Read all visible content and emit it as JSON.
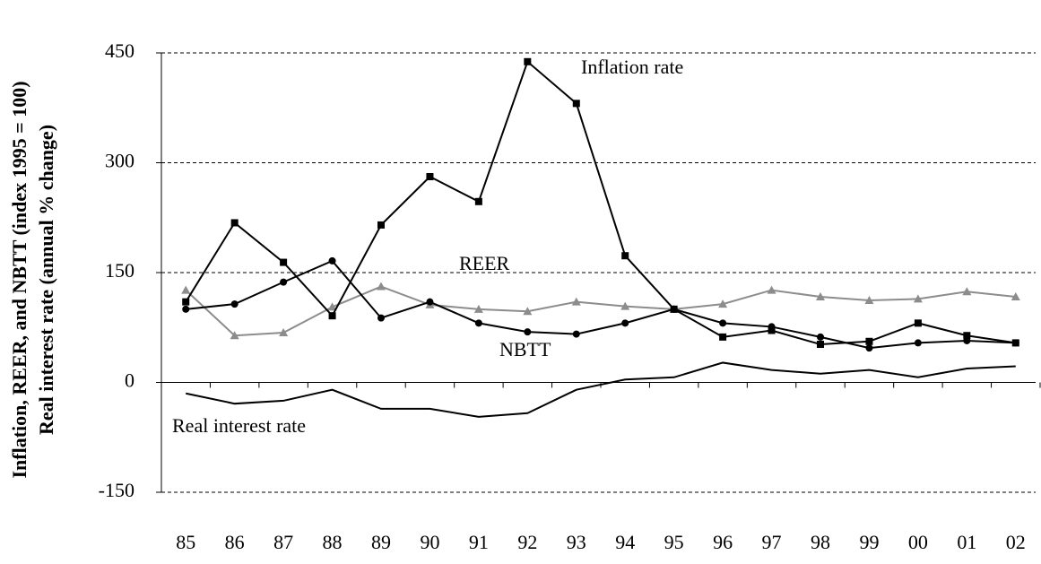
{
  "chart_data": {
    "type": "line",
    "y_label": [
      "Inflation, REER, and NBTT (index 1995 = 100)",
      "Real interest rate (annual % change)"
    ],
    "categories": [
      "85",
      "86",
      "87",
      "88",
      "89",
      "90",
      "91",
      "92",
      "93",
      "94",
      "95",
      "96",
      "97",
      "98",
      "99",
      "00",
      "01",
      "02"
    ],
    "series": [
      {
        "name": "Inflation rate",
        "color": "#000000",
        "marker": "square",
        "values": [
          110,
          218,
          164,
          91,
          215,
          281,
          247,
          438,
          381,
          173,
          100,
          62,
          71,
          52,
          56,
          81,
          64,
          54
        ]
      },
      {
        "name": "NBTT",
        "color": "#000000",
        "marker": "circle",
        "values": [
          100,
          107,
          137,
          166,
          88,
          110,
          81,
          69,
          66,
          81,
          100,
          81,
          76,
          62,
          47,
          54,
          57,
          54
        ]
      },
      {
        "name": "REER",
        "color": "#8c8c8c",
        "marker": "triangle",
        "values": [
          126,
          64,
          68,
          103,
          131,
          106,
          100,
          97,
          110,
          104,
          100,
          107,
          126,
          117,
          112,
          114,
          124,
          117
        ]
      },
      {
        "name": "Real interest rate",
        "color": "#000000",
        "marker": "none",
        "values": [
          -15,
          -29,
          -25,
          -10,
          -36,
          -36,
          -47,
          -42,
          -10,
          4,
          7,
          27,
          17,
          12,
          17,
          7,
          19,
          22
        ]
      }
    ],
    "ylim": [
      -150,
      450
    ],
    "yticks": [
      -150,
      0,
      150,
      300,
      450
    ],
    "grid": true
  }
}
